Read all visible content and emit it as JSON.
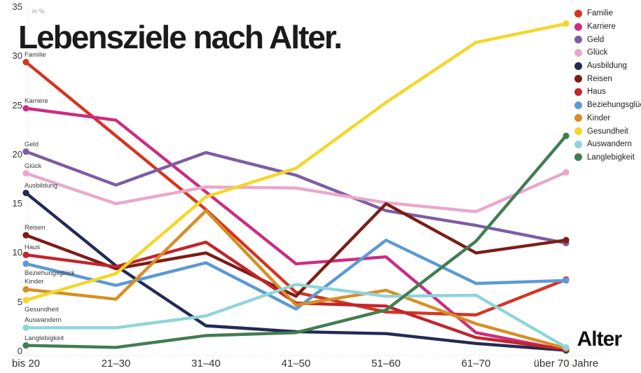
{
  "title": "Lebensziele nach Alter.",
  "axis": {
    "unit_label": "in %",
    "x_title": "Alter",
    "y_ticks": [
      0,
      5,
      10,
      15,
      20,
      25,
      30,
      35
    ]
  },
  "chart_data": {
    "type": "line",
    "title": "Lebensziele nach Alter.",
    "xlabel": "Alter",
    "ylabel": "in %",
    "ylim": [
      0,
      35
    ],
    "grid": false,
    "legend_position": "right",
    "categories": [
      "bis 20",
      "21–30",
      "31–40",
      "41–50",
      "51–60",
      "61–70",
      "über 70 Jahre"
    ],
    "series": [
      {
        "name": "Familie",
        "color": "#d63420",
        "label_dy": -7,
        "values": [
          29.4,
          21.9,
          14.4,
          6.0,
          4.0,
          3.7,
          7.3
        ]
      },
      {
        "name": "Karriere",
        "color": "#cb2d82",
        "label_dy": -7,
        "values": [
          24.7,
          23.5,
          16.2,
          8.9,
          9.6,
          1.9,
          0.1
        ]
      },
      {
        "name": "Geld",
        "color": "#7d5ca5",
        "label_dy": -7,
        "values": [
          20.3,
          16.9,
          20.2,
          17.9,
          14.3,
          12.8,
          11.0
        ]
      },
      {
        "name": "Glück",
        "color": "#e9a8cb",
        "label_dy": -7,
        "values": [
          18.1,
          15.0,
          16.7,
          16.6,
          15.1,
          14.2,
          18.2
        ]
      },
      {
        "name": "Ausbildung",
        "color": "#232a54",
        "label_dy": -7,
        "values": [
          16.1,
          8.7,
          2.6,
          2.0,
          1.8,
          0.8,
          0.1
        ]
      },
      {
        "name": "Reisen",
        "color": "#7c1d15",
        "label_dy": -7,
        "values": [
          11.8,
          8.4,
          10.0,
          5.6,
          15.0,
          10.0,
          11.3
        ]
      },
      {
        "name": "Haus",
        "color": "#c2252b",
        "label_dy": -7,
        "values": [
          9.8,
          8.6,
          11.1,
          4.9,
          4.6,
          1.4,
          0.2
        ]
      },
      {
        "name": "Beziehungsglück",
        "color": "#5a9ad5",
        "label_dy": 17,
        "values": [
          8.9,
          6.7,
          9.0,
          4.3,
          11.3,
          6.9,
          7.2
        ]
      },
      {
        "name": "Kinder",
        "color": "#d88e22",
        "label_dy": -7,
        "values": [
          6.3,
          5.3,
          14.3,
          4.7,
          6.2,
          2.8,
          0.3
        ]
      },
      {
        "name": "Gesundheit",
        "color": "#f4d627",
        "label_dy": 17,
        "values": [
          5.2,
          7.9,
          15.7,
          18.6,
          25.3,
          31.4,
          33.3
        ]
      },
      {
        "name": "Auswandern",
        "color": "#8fd5da",
        "label_dy": -7,
        "values": [
          2.4,
          2.4,
          3.6,
          6.8,
          5.6,
          5.7,
          0.4
        ]
      },
      {
        "name": "Langlebigkeit",
        "color": "#417d52",
        "label_dy": -7,
        "values": [
          0.6,
          0.4,
          1.6,
          1.9,
          4.2,
          11.2,
          21.9
        ]
      }
    ]
  }
}
